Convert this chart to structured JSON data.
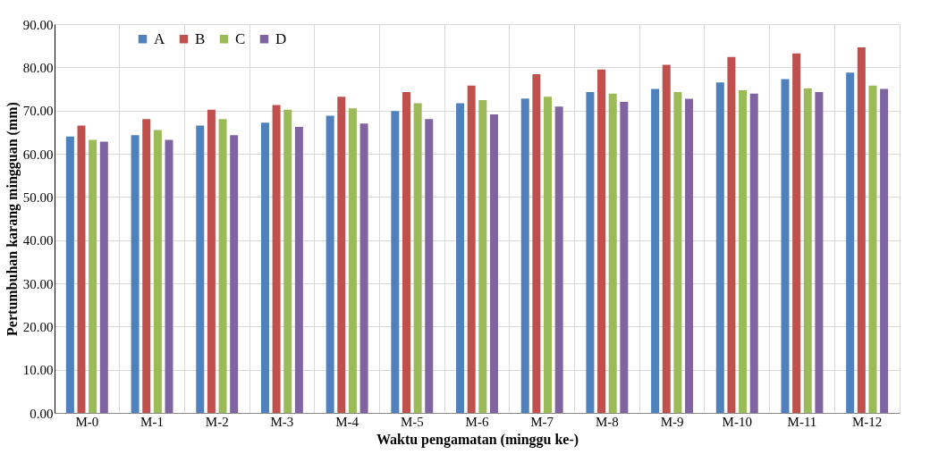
{
  "chart_data": {
    "type": "bar",
    "xlabel": "Waktu pengamatan (minggu ke-)",
    "ylabel": "Pertumbuhan karang mingguan (mm)",
    "categories": [
      "M-0",
      "M-1",
      "M-2",
      "M-3",
      "M-4",
      "M-5",
      "M-6",
      "M-7",
      "M-8",
      "M-9",
      "M-10",
      "M-11",
      "M-12"
    ],
    "series": [
      {
        "name": "A",
        "color": "#4f81bd",
        "values": [
          64.0,
          64.3,
          66.5,
          67.2,
          68.8,
          69.9,
          71.7,
          72.8,
          74.3,
          75.0,
          76.5,
          77.3,
          78.8
        ]
      },
      {
        "name": "B",
        "color": "#c0504d",
        "values": [
          66.5,
          68.0,
          70.2,
          71.3,
          73.2,
          74.3,
          75.8,
          78.4,
          79.5,
          80.6,
          82.4,
          83.2,
          84.6
        ]
      },
      {
        "name": "C",
        "color": "#9bbb59",
        "values": [
          63.2,
          65.5,
          68.0,
          70.2,
          70.5,
          71.7,
          72.4,
          73.2,
          73.9,
          74.3,
          74.7,
          75.1,
          75.8
        ]
      },
      {
        "name": "D",
        "color": "#8064a2",
        "values": [
          62.8,
          63.2,
          64.3,
          66.2,
          67.0,
          68.0,
          69.1,
          70.9,
          72.0,
          72.7,
          73.9,
          74.3,
          75.0
        ]
      }
    ],
    "ylim": [
      0,
      90
    ],
    "yticks": [
      {
        "value": 0,
        "label": "0.00"
      },
      {
        "value": 10,
        "label": "10.00"
      },
      {
        "value": 20,
        "label": "20.00"
      },
      {
        "value": 30,
        "label": "30.00"
      },
      {
        "value": 40,
        "label": "40.00"
      },
      {
        "value": 50,
        "label": "50.00"
      },
      {
        "value": 60,
        "label": "60.00"
      },
      {
        "value": 70,
        "label": "70.00"
      },
      {
        "value": 80,
        "label": "80.00"
      },
      {
        "value": 90,
        "label": "90.00"
      }
    ],
    "grid": true,
    "legend": "top left"
  }
}
